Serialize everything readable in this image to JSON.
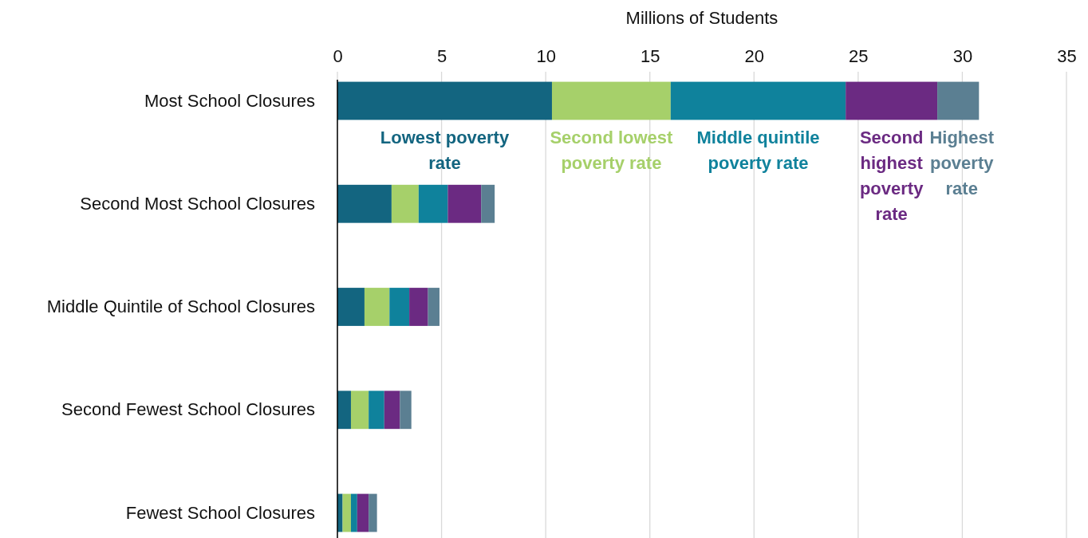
{
  "chart_data": {
    "type": "bar",
    "orientation": "horizontal",
    "stacked": true,
    "xlabel": "Millions of Students",
    "categories": [
      "Most School Closures",
      "Second Most School Closures",
      "Middle Quintile of School Closures",
      "Second Fewest School Closures",
      "Fewest School Closures"
    ],
    "series": [
      {
        "name": "Lowest poverty rate",
        "color": "#136580",
        "values": [
          10.3,
          2.6,
          1.3,
          0.65,
          0.25
        ]
      },
      {
        "name": "Second lowest poverty rate",
        "color": "#a6d06a",
        "values": [
          5.7,
          1.3,
          1.2,
          0.85,
          0.4
        ]
      },
      {
        "name": "Middle quintile poverty rate",
        "color": "#0f829c",
        "values": [
          8.4,
          1.4,
          0.95,
          0.75,
          0.3
        ]
      },
      {
        "name": "Second highest poverty rate",
        "color": "#6b2a82",
        "values": [
          4.4,
          1.6,
          0.9,
          0.75,
          0.55
        ]
      },
      {
        "name": "Highest poverty rate",
        "color": "#5b7f92",
        "values": [
          2.0,
          0.65,
          0.55,
          0.55,
          0.4
        ]
      }
    ],
    "xlim": [
      0,
      35
    ],
    "xticks": [
      0,
      5,
      10,
      15,
      20,
      25,
      30,
      35
    ],
    "grid": "x"
  }
}
